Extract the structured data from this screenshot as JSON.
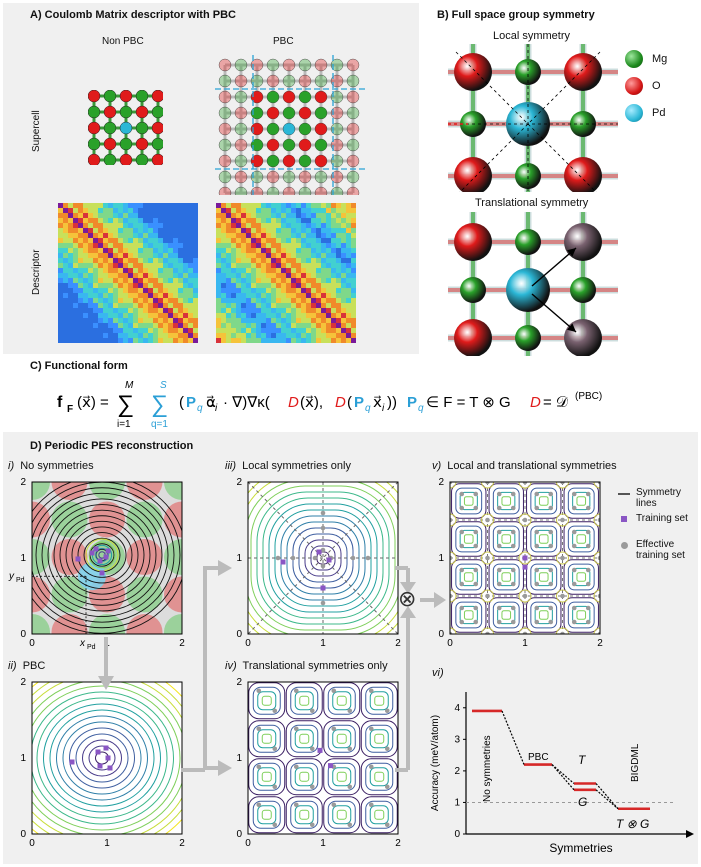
{
  "panelA": {
    "title": "A)   Coulomb Matrix descriptor with PBC",
    "col_nonpbc": "Non PBC",
    "col_pbc": "PBC",
    "row_supercell": "Supercell",
    "row_descriptor": "Descriptor"
  },
  "panelB": {
    "title": "B)   Full space group symmetry",
    "local": "Local symmetry",
    "translational": "Translational symmetry",
    "legend": [
      {
        "label": "Mg",
        "color": "#2aa12a"
      },
      {
        "label": "O",
        "color": "#e01b1b"
      },
      {
        "label": "Pd",
        "color": "#2bb7d6"
      }
    ]
  },
  "panelC": {
    "title": "C)   Functional form",
    "eq_main": "f_F(x) = Σ_{i=1}^{M} Σ_{q=1}^{S} (P_q α_i · ∇)∇κ(D(x), D(P_q x_i))",
    "eq_main_lhs": "f",
    "eq_main_rhs": "(x) = Σ Σ (P α · ∇)∇κ(",
    "eq_sum_top_M": "M",
    "eq_sum_top_S": "S",
    "eq_sum_bot_i": "i=1",
    "eq_sum_bot_q": "q=1",
    "eq_kernel_args": "D(x), D(P x )",
    "eq_group": "∈ F = T ⊗ G",
    "eq_group_P": "P",
    "eq_desc": "D = D",
    "eq_desc_sup": "(PBC)"
  },
  "panelD": {
    "title": "D)   Periodic PES reconstruction",
    "sub_i": "i)",
    "sub_i_title": "No symmetries",
    "sub_ii": "ii)",
    "sub_ii_title": "PBC",
    "sub_iii": "iii)",
    "sub_iii_title": "Local symmetries only",
    "sub_iv": "iv)",
    "sub_iv_title": "Translational symmetries only",
    "sub_v": "v)",
    "sub_v_title": "Local and translational symmetries",
    "sub_vi": "vi)",
    "ypd": "y",
    "xpd": "x",
    "pd_sub": "Pd",
    "otimes": "⊗",
    "ticks": [
      "0",
      "1",
      "2"
    ],
    "legend_sym": "Symmetry lines",
    "legend_train": "Training set",
    "legend_eff": "Effective training set"
  },
  "panelVI": {
    "ylabel": "Accuracy (meV/atom)",
    "xlabel": "Symmetries",
    "yticks": [
      "0",
      "1",
      "2",
      "3",
      "4"
    ],
    "labels": {
      "nosym": "No symmetries",
      "pbc": "PBC",
      "T": "T",
      "G": "G",
      "bigdml": "BIGDML",
      "TG": "T ⊗ G"
    }
  },
  "chart_data": {
    "type": "line",
    "xlabel": "Symmetries",
    "ylabel": "Accuracy (meV/atom)",
    "ylim": [
      0,
      4.5
    ],
    "categories": [
      "No symmetries",
      "PBC",
      "T",
      "G",
      "BIGDML (T ⊗ G)"
    ],
    "values": [
      3.9,
      2.2,
      1.6,
      1.4,
      0.8
    ],
    "reference_line": 1
  }
}
